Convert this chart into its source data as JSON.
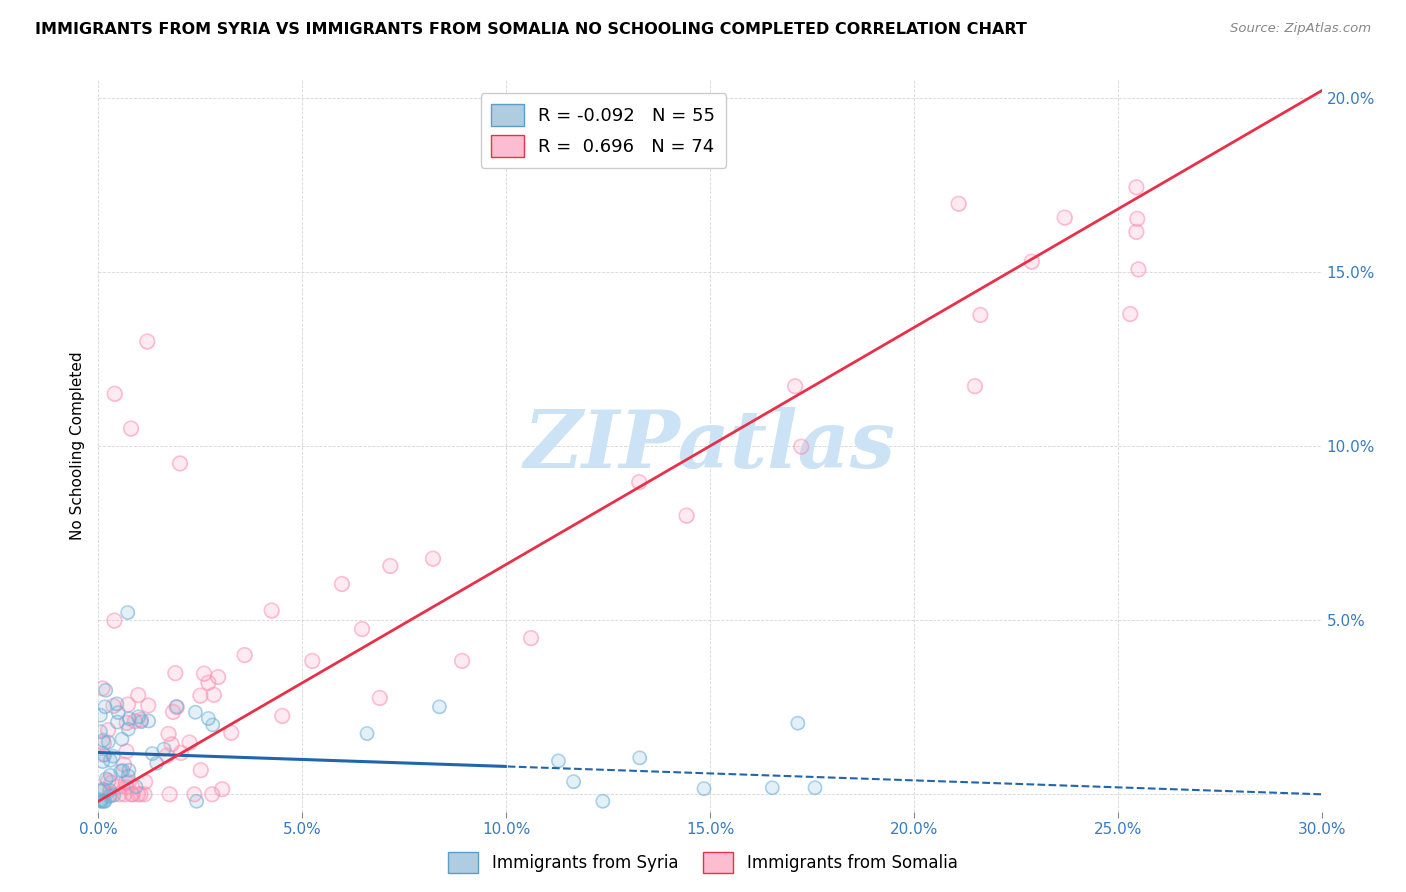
{
  "title": "IMMIGRANTS FROM SYRIA VS IMMIGRANTS FROM SOMALIA NO SCHOOLING COMPLETED CORRELATION CHART",
  "source": "Source: ZipAtlas.com",
  "ylabel": "No Schooling Completed",
  "xlim": [
    0.0,
    0.3
  ],
  "ylim": [
    -0.005,
    0.205
  ],
  "xticks": [
    0.0,
    0.05,
    0.1,
    0.15,
    0.2,
    0.25,
    0.3
  ],
  "xticklabels": [
    "0.0%",
    "5.0%",
    "10.0%",
    "15.0%",
    "20.0%",
    "25.0%",
    "30.0%"
  ],
  "yticks_right": [
    0.0,
    0.05,
    0.1,
    0.15,
    0.2
  ],
  "yticklabels_right": [
    "",
    "5.0%",
    "10.0%",
    "15.0%",
    "20.0%"
  ],
  "syria_color": "#6baed6",
  "somalia_color": "#fc8db0",
  "syria_line_color": "#2166ac",
  "somalia_line_color": "#e8304a",
  "syria_R": -0.092,
  "syria_N": 55,
  "somalia_R": 0.696,
  "somalia_N": 74,
  "watermark": "ZIPatlas",
  "watermark_color": "#cce3f5",
  "syria_intercept": 0.012,
  "syria_slope": -0.04,
  "somalia_intercept": -0.002,
  "somalia_slope": 0.68
}
